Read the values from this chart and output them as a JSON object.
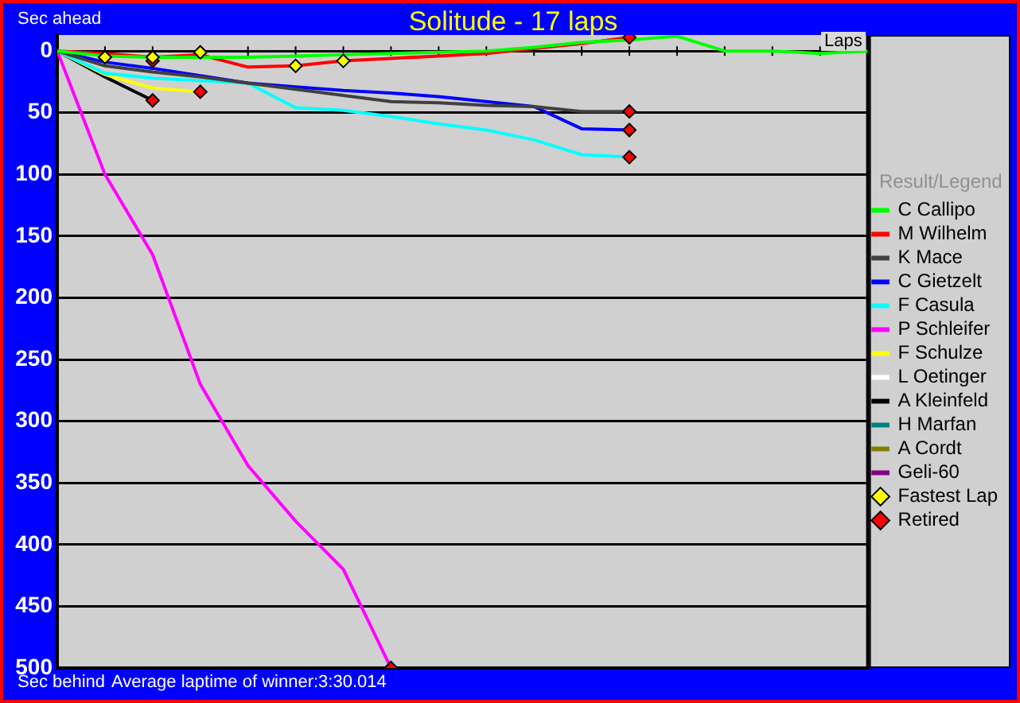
{
  "chart_data": {
    "type": "line",
    "title": "Solitude - 17 laps",
    "xlabel": "Laps",
    "legend_title": "Result/Legend",
    "annotations": [
      "Sec ahead",
      "Sec behind",
      "Average laptime of winner:3:30.014"
    ],
    "categories": [
      null,
      null,
      null,
      null,
      null,
      null,
      null,
      null,
      null,
      null,
      null,
      null,
      null,
      null,
      null,
      null,
      null,
      null
    ],
    "ylim": [
      500,
      -13
    ],
    "yticks": [
      0,
      50,
      100,
      150,
      200,
      250,
      300,
      350,
      400,
      450,
      500
    ],
    "tick_labels": "y",
    "grid": "y",
    "legend": "right",
    "marker": "none",
    "line_style": "solid",
    "series": [
      {
        "name": "C Callipo",
        "color": "#00ff00",
        "values": [
          0,
          4,
          5,
          5,
          5,
          4,
          3,
          2,
          1,
          0,
          -3,
          -7,
          -9,
          -12,
          0,
          0,
          2,
          0
        ]
      },
      {
        "name": "M Wilhelm",
        "color": "#ff0000",
        "values": [
          0,
          2,
          5,
          3,
          13,
          12,
          8,
          6,
          4,
          2,
          -2,
          -6,
          -11,
          null,
          null,
          null,
          null,
          null
        ]
      },
      {
        "name": "K Mace",
        "color": "#404040",
        "values": [
          0,
          12,
          17,
          21,
          26,
          31,
          36,
          41,
          42,
          44,
          45,
          49,
          49,
          null,
          null,
          null,
          null,
          null
        ]
      },
      {
        "name": "C Gietzelt",
        "color": "#0000ff",
        "values": [
          0,
          9,
          14,
          20,
          26,
          29,
          32,
          34,
          37,
          41,
          45,
          63,
          64,
          null,
          null,
          null,
          null,
          null
        ]
      },
      {
        "name": "F Casula",
        "color": "#00ffff",
        "values": [
          0,
          18,
          22,
          24,
          26,
          46,
          48,
          53,
          59,
          64,
          72,
          84,
          86,
          null,
          null,
          null,
          null,
          null
        ]
      },
      {
        "name": "P Schleifer",
        "color": "#ff00ff",
        "values": [
          0,
          100,
          165,
          270,
          336,
          381,
          420,
          500,
          null,
          null,
          null,
          null,
          null,
          null,
          null,
          null,
          null,
          null
        ]
      },
      {
        "name": "F Schulze",
        "color": "#ffff00",
        "values": [
          0,
          19,
          30,
          33,
          null,
          null,
          null,
          null,
          null,
          null,
          null,
          null,
          null,
          null,
          null,
          null,
          null,
          null
        ]
      },
      {
        "name": "L Oetinger",
        "color": "#ffffff",
        "values": [
          null,
          null,
          null,
          null,
          null,
          null,
          null,
          null,
          null,
          null,
          null,
          null,
          null,
          null,
          null,
          null,
          null,
          null
        ]
      },
      {
        "name": "A Kleinfeld",
        "color": "#000000",
        "values": [
          0,
          21,
          40,
          null,
          null,
          null,
          null,
          null,
          null,
          null,
          null,
          null,
          null,
          null,
          null,
          null,
          null,
          null
        ]
      },
      {
        "name": "H Marfan",
        "color": "#008080",
        "values": [
          null,
          null,
          null,
          null,
          null,
          null,
          null,
          null,
          null,
          null,
          null,
          null,
          null,
          null,
          null,
          null,
          null,
          null
        ]
      },
      {
        "name": "A Cordt",
        "color": "#808000",
        "values": [
          null,
          null,
          null,
          null,
          null,
          null,
          null,
          null,
          null,
          null,
          null,
          null,
          null,
          null,
          null,
          null,
          null,
          null
        ]
      },
      {
        "name": "Geli-60",
        "color": "#800080",
        "values": [
          null,
          null,
          null,
          null,
          null,
          null,
          null,
          null,
          null,
          null,
          null,
          null,
          null,
          null,
          null,
          null,
          null,
          null
        ]
      },
      {
        "name": "Fastest Lap",
        "type": "scatter",
        "marker": "diamond",
        "color": "#ffff00",
        "values": [
          null,
          5,
          5,
          1,
          null,
          12,
          8,
          null,
          null,
          null,
          null,
          null,
          null,
          null,
          null,
          null,
          null,
          null
        ]
      },
      {
        "name": "Retired",
        "type": "scatter",
        "marker": "diamond",
        "color": "#ff0000",
        "values": [
          null,
          null,
          40,
          33,
          null,
          null,
          null,
          500,
          null,
          null,
          null,
          null,
          86,
          null,
          null,
          null,
          null,
          null
        ]
      },
      {
        "type": "scatter",
        "marker": "diamond",
        "color": "#ff0000",
        "values": [
          null,
          null,
          8,
          null,
          null,
          null,
          null,
          null,
          null,
          null,
          null,
          null,
          64,
          null,
          null,
          null,
          null,
          null
        ]
      },
      {
        "type": "scatter",
        "marker": "diamond",
        "color": "#ff0000",
        "values": [
          null,
          null,
          null,
          null,
          null,
          null,
          null,
          null,
          null,
          null,
          null,
          null,
          49,
          null,
          null,
          null,
          null,
          null
        ]
      },
      {
        "type": "scatter",
        "marker": "diamond",
        "color": "#ff0000",
        "values": [
          null,
          null,
          null,
          null,
          null,
          null,
          null,
          null,
          null,
          null,
          null,
          null,
          -11,
          null,
          null,
          null,
          null,
          null
        ]
      }
    ]
  }
}
